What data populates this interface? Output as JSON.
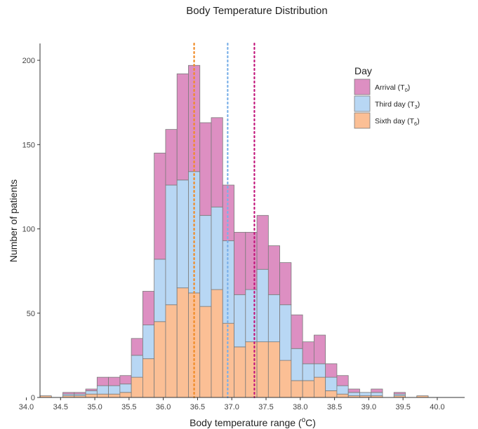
{
  "chart_data": {
    "type": "bar",
    "stacked": true,
    "title": "Body Temperature Distribution",
    "xlabel": {
      "prefix": "Body temperature range (",
      "sup": "o",
      "suffix": "C)"
    },
    "ylabel": "Number of patients",
    "xlim": [
      34.2,
      40.4
    ],
    "ylim": [
      0,
      210
    ],
    "bin_width": 0.1667,
    "bin_start": 34.2,
    "x_ticks": [
      "34.0",
      "34.5",
      "35.0",
      "35.5",
      "36.0",
      "36.5",
      "37.0",
      "37.5",
      "38.0",
      "38.5",
      "39.0",
      "39.5",
      "40.0"
    ],
    "x_tick_values": [
      34.0,
      34.5,
      35.0,
      35.5,
      36.0,
      36.5,
      37.0,
      37.5,
      38.0,
      38.5,
      39.0,
      39.5,
      40.0
    ],
    "y_ticks": [
      "0",
      "50",
      "100",
      "150",
      "200"
    ],
    "y_tick_values": [
      0,
      50,
      100,
      150,
      200
    ],
    "grid": false,
    "legend_position": "top-right",
    "legend_title": "Day",
    "series": [
      {
        "name": "Sixth day",
        "sub": "6",
        "color": "#fbbf95",
        "values": [
          1,
          0,
          1,
          1,
          2,
          2,
          2,
          3,
          12,
          23,
          45,
          55,
          65,
          62,
          54,
          64,
          44,
          30,
          33,
          33,
          33,
          22,
          10,
          10,
          12,
          4,
          2,
          1,
          1,
          1,
          0,
          1,
          0,
          1
        ]
      },
      {
        "name": "Third day",
        "sub": "3",
        "color": "#b8d7f4",
        "values": [
          0,
          0,
          1,
          1,
          2,
          5,
          5,
          5,
          13,
          20,
          37,
          71,
          64,
          72,
          54,
          49,
          49,
          31,
          31,
          43,
          28,
          33,
          19,
          10,
          8,
          8,
          5,
          2,
          2,
          2,
          0,
          1,
          0,
          0
        ]
      },
      {
        "name": "Arrival",
        "sub": "0",
        "color": "#dd8fc2",
        "values": [
          0,
          0,
          1,
          1,
          1,
          5,
          5,
          5,
          10,
          20,
          63,
          33,
          63,
          63,
          55,
          53,
          33,
          37,
          34,
          32,
          29,
          25,
          20,
          13,
          17,
          8,
          6,
          2,
          0,
          2,
          0,
          1,
          0,
          0
        ]
      }
    ],
    "legend_order": [
      2,
      1,
      0
    ],
    "vlines": [
      {
        "x": 36.45,
        "color": "#f08a24"
      },
      {
        "x": 36.94,
        "color": "#7ab0e8"
      },
      {
        "x": 37.33,
        "color": "#c2167c"
      }
    ]
  }
}
